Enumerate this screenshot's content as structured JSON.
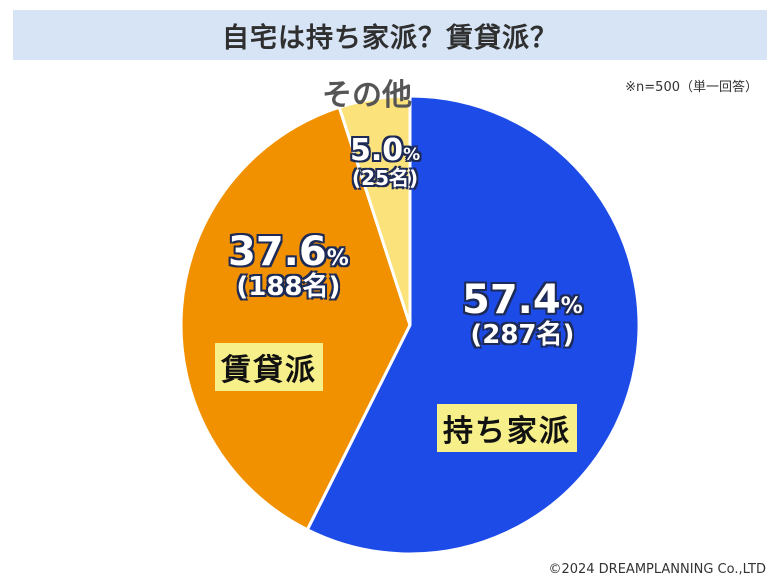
{
  "title": "自宅は持ち家派？賃貸派？",
  "note": "※n=500（単一回答）",
  "copyright": "©2024 DREAMPLANNING Co.,LTD",
  "chart_data": {
    "type": "pie",
    "title": "自宅は持ち家派？賃貸派？",
    "slices": [
      {
        "label": "持ち家派",
        "percent": 57.4,
        "count_label": "(287名)",
        "value": 287,
        "color": "#1d4be8"
      },
      {
        "label": "賃貸派",
        "percent": 37.6,
        "count_label": "(188名)",
        "value": 188,
        "color": "#f29100"
      },
      {
        "label": "その他",
        "percent": 5.0,
        "count_label": "(25名)",
        "value": 25,
        "color": "#fbe27a"
      }
    ],
    "percent_text": [
      "57.4",
      "37.6",
      "5.0"
    ],
    "percent_unit": "%"
  }
}
